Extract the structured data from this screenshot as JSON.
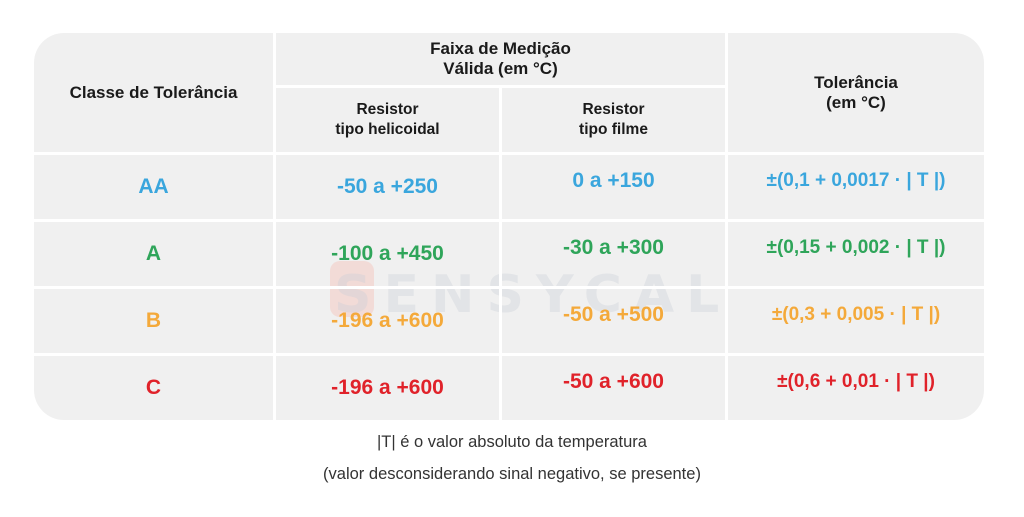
{
  "header": {
    "class_col": "Classe de Tolerância",
    "range_title_1": "Faixa de Medição",
    "range_title_2": "Válida (em °C)",
    "helical_1": "Resistor",
    "helical_2": "tipo helicoidal",
    "film_1": "Resistor",
    "film_2": "tipo filme",
    "tol_1": "Tolerância",
    "tol_2": "(em °C)"
  },
  "rows": [
    {
      "cls": "AA",
      "helical": "-50 a +250",
      "film": "0 a +150",
      "tol": "±(0,1 + 0,0017 · | T |)",
      "color": "#3aa6dd"
    },
    {
      "cls": "A",
      "helical": "-100 a +450",
      "film": "-30 a +300",
      "tol": "±(0,15 + 0,002 · | T |)",
      "color": "#2fa55a"
    },
    {
      "cls": "B",
      "helical": "-196 a +600",
      "film": "-50 a +500",
      "tol": "±(0,3 + 0,005 · | T |)",
      "color": "#f4a93a"
    },
    {
      "cls": "C",
      "helical": "-196 a +600",
      "film": "-50 a +600",
      "tol": "±(0,6 + 0,01 · | T |)",
      "color": "#e0222a"
    }
  ],
  "watermark": "SENSYCAL",
  "notes": {
    "line1": "|T| é o valor absoluto da temperatura",
    "line2": "(valor desconsiderando sinal negativo, se presente)"
  }
}
